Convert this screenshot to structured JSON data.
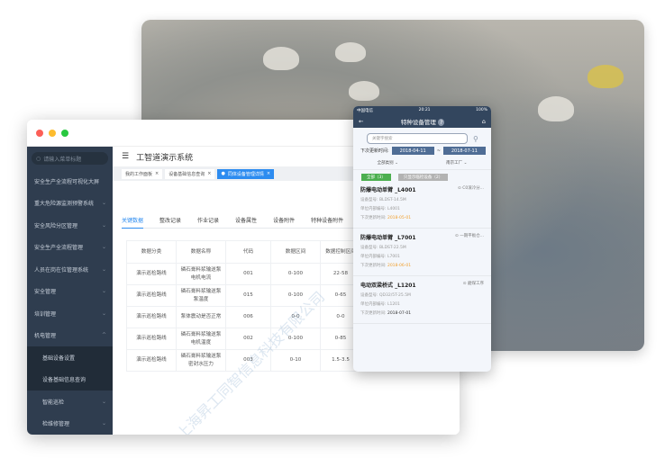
{
  "desktop": {
    "search_placeholder": "请输入菜单标题",
    "menu": [
      {
        "label": "安全生产全流程可视化大屏",
        "chevron": ""
      },
      {
        "label": "重大危险源监测预警系统",
        "chevron": "⌄"
      },
      {
        "label": "安全风险分区管理",
        "chevron": "⌄"
      },
      {
        "label": "安全生产全流程管理",
        "chevron": "⌄"
      },
      {
        "label": "人员在岗在位管理系统",
        "chevron": "⌄"
      },
      {
        "label": "安全管理",
        "chevron": "⌄"
      },
      {
        "label": "培训管理",
        "chevron": "⌄"
      },
      {
        "label": "机电管理",
        "chevron": "^"
      }
    ],
    "submenu": [
      "基础设备设置",
      "设备基础信息查询"
    ],
    "submenu2": [
      {
        "label": "智能巡检",
        "chevron": "⌄"
      },
      {
        "label": "检维修管理",
        "chevron": "⌄"
      }
    ],
    "app_title": "工智道演示系统",
    "open_tabs": [
      "我的工作面板",
      "设备基础信息查询",
      "同体设备管理详情"
    ],
    "detail_tabs": [
      "关键数据",
      "整改记录",
      "作业记录",
      "设备属性",
      "设备附件",
      "特种设备附件"
    ],
    "table": {
      "headers": [
        "数据分类",
        "数据名称",
        "代码",
        "数据区间",
        "数据控制区间"
      ],
      "rows": [
        [
          "演示巡检路线",
          "磷石膏料浆输送泵电机电流",
          "001",
          "0-100",
          "22-58"
        ],
        [
          "演示巡检路线",
          "磷石膏料浆输送泵泵温度",
          "015",
          "0-100",
          "0-65"
        ],
        [
          "演示巡检路线",
          "泵体震动是否正常",
          "006",
          "0-0",
          "0-0"
        ],
        [
          "演示巡检路线",
          "磷石膏料浆输送泵电机温度",
          "002",
          "0-100",
          "0-85"
        ],
        [
          "演示巡检路线",
          "磷石膏料浆输送泵密封水压力",
          "003",
          "0-10",
          "1.5-3.5"
        ]
      ]
    },
    "watermark": "上海昇工同智信息科技有限公司"
  },
  "phone": {
    "carrier": "中国电信",
    "time": "20:21",
    "battery": "100%",
    "title": "特种设备管理",
    "help": "?",
    "search_placeholder": "关键字搜索",
    "date_label": "下次更新时间:",
    "date_from": "2018-04-11",
    "date_sep": "~",
    "date_to": "2018-07-11",
    "filter1": "全部类别",
    "filter2": "南京工厂",
    "chip_all": "全部（3）",
    "chip_overdue": "只显示临检设备（2）",
    "items": [
      {
        "name": "防爆电动单臂 _L4001",
        "location": "C0滚冷分...",
        "model_label": "设备型号:",
        "model": "BLDST-14.5M",
        "code_label": "单位内部编号:",
        "code": "L4001",
        "next_label": "下次更新时间:",
        "next": "2018-05-01",
        "overdue": true
      },
      {
        "name": "防爆电动单臂 _L7001",
        "location": "一期平板仓...",
        "model_label": "设备型号:",
        "model": "BLDST-22.5M",
        "code_label": "单位内部编号:",
        "code": "L7001",
        "next_label": "下次更新时间:",
        "next": "2018-06-01",
        "overdue": true
      },
      {
        "name": "电动双梁桥式 _L1201",
        "location": "磨煤工序",
        "model_label": "设备型号:",
        "model": "QD32/5T-25.5M",
        "code_label": "单位内部编号:",
        "code": "L1201",
        "next_label": "下次更新时间:",
        "next": "2018-07-01",
        "overdue": false
      }
    ]
  },
  "colors": {
    "sidebar": "#2f3d4f",
    "accent": "#2d8cf0",
    "phone_header": "#33465e",
    "chip_green": "#4caf50",
    "warn": "#f0a030"
  }
}
